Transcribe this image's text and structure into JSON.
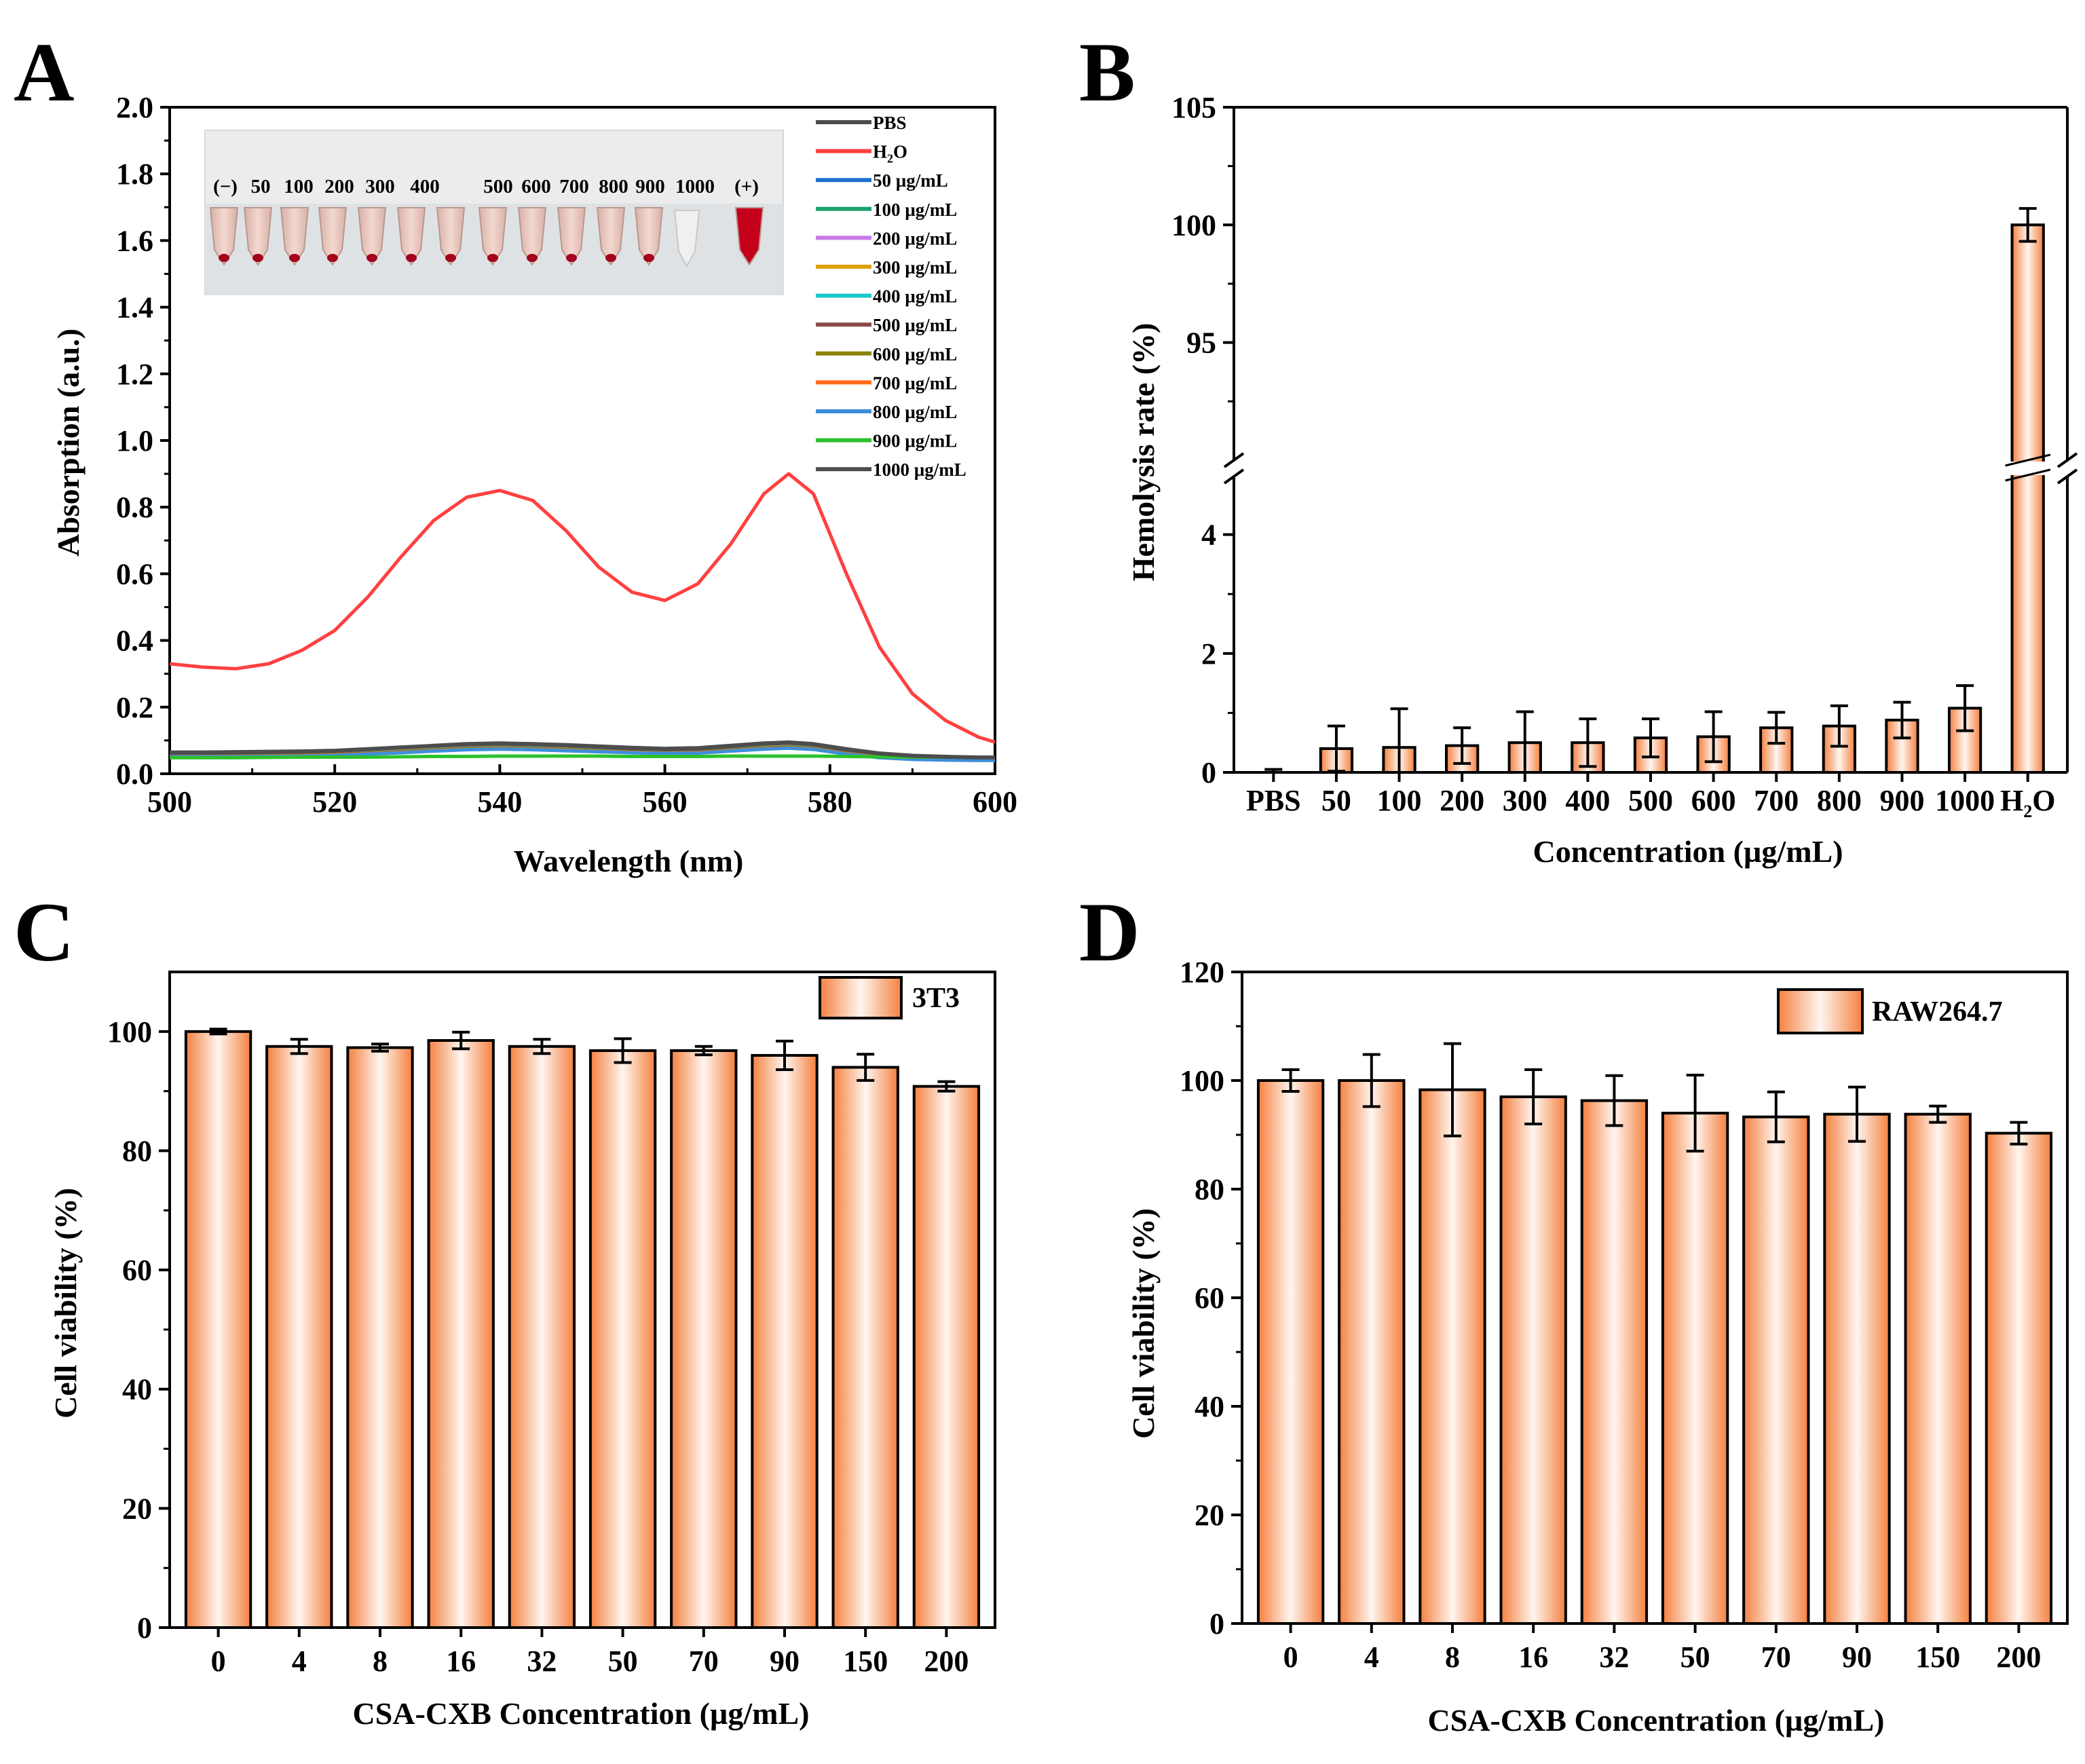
{
  "figure": {
    "panels": [
      {
        "id": "A",
        "letter": "A"
      },
      {
        "id": "B",
        "letter": "B"
      },
      {
        "id": "C",
        "letter": "C"
      },
      {
        "id": "D",
        "letter": "D"
      }
    ]
  },
  "colors": {
    "bar_edge": "#000000",
    "bar_orange": "#f4803f",
    "bar_light": "#fde8dc",
    "h2o_red": "#ff4040",
    "pbs_gray": "#4d4d4d"
  },
  "inset": {
    "description_labels": [
      "(−)",
      "50",
      "100",
      "200",
      "300",
      "400",
      "500",
      "600",
      "700",
      "800",
      "900",
      "1000",
      "(+)"
    ]
  },
  "chart_data": [
    {
      "panel": "A",
      "type": "line",
      "xlabel": "Wavelength (nm)",
      "ylabel": "Absorption (a.u.)",
      "xlim": [
        500,
        600
      ],
      "ylim": [
        0,
        2.0
      ],
      "xticks": [
        "500",
        "520",
        "540",
        "560",
        "580",
        "600"
      ],
      "yticks": [
        "0.0",
        "0.2",
        "0.4",
        "0.6",
        "0.8",
        "1.0",
        "1.2",
        "1.4",
        "1.6",
        "1.8",
        "2.0"
      ],
      "x": [
        500,
        504,
        508,
        512,
        516,
        520,
        524,
        528,
        532,
        536,
        540,
        544,
        548,
        552,
        556,
        560,
        564,
        568,
        572,
        575,
        578,
        582,
        586,
        590,
        594,
        598,
        600
      ],
      "series": [
        {
          "name": "PBS",
          "label_main": "PBS",
          "label_sub": "",
          "color": "#4d4d4d",
          "values": [
            0.065,
            0.065,
            0.066,
            0.067,
            0.068,
            0.07,
            0.075,
            0.08,
            0.085,
            0.09,
            0.092,
            0.09,
            0.087,
            0.083,
            0.079,
            0.076,
            0.078,
            0.085,
            0.092,
            0.095,
            0.09,
            0.075,
            0.062,
            0.055,
            0.052,
            0.05,
            0.05
          ]
        },
        {
          "name": "H2O",
          "label_main": "H",
          "label_sub": "2",
          "label_tail": "O",
          "color": "#ff4040",
          "values": [
            0.33,
            0.32,
            0.315,
            0.33,
            0.37,
            0.43,
            0.53,
            0.65,
            0.76,
            0.83,
            0.85,
            0.82,
            0.73,
            0.62,
            0.545,
            0.52,
            0.57,
            0.69,
            0.84,
            0.9,
            0.84,
            0.6,
            0.38,
            0.24,
            0.16,
            0.11,
            0.095
          ]
        },
        {
          "name": "50 µg/mL",
          "label_main": "50 µg/mL",
          "color": "#1f6fd1",
          "values": [
            0.06,
            0.06,
            0.06,
            0.061,
            0.062,
            0.064,
            0.068,
            0.072,
            0.077,
            0.081,
            0.083,
            0.081,
            0.078,
            0.075,
            0.072,
            0.07,
            0.071,
            0.077,
            0.083,
            0.086,
            0.082,
            0.068,
            0.057,
            0.051,
            0.049,
            0.048,
            0.048
          ]
        },
        {
          "name": "100 µg/mL",
          "label_main": "100 µg/mL",
          "color": "#1aa36b",
          "values": [
            0.058,
            0.058,
            0.058,
            0.059,
            0.06,
            0.062,
            0.066,
            0.07,
            0.075,
            0.079,
            0.081,
            0.079,
            0.076,
            0.073,
            0.07,
            0.068,
            0.069,
            0.075,
            0.081,
            0.084,
            0.08,
            0.066,
            0.055,
            0.05,
            0.048,
            0.047,
            0.047
          ]
        },
        {
          "name": "200 µg/mL",
          "label_main": "200 µg/mL",
          "color": "#c77ae6",
          "values": [
            0.057,
            0.057,
            0.057,
            0.058,
            0.059,
            0.061,
            0.065,
            0.069,
            0.074,
            0.078,
            0.08,
            0.078,
            0.075,
            0.072,
            0.069,
            0.067,
            0.068,
            0.074,
            0.08,
            0.083,
            0.079,
            0.065,
            0.054,
            0.049,
            0.047,
            0.046,
            0.046
          ]
        },
        {
          "name": "300 µg/mL",
          "label_main": "300 µg/mL",
          "color": "#e0a000",
          "values": [
            0.056,
            0.056,
            0.056,
            0.057,
            0.058,
            0.06,
            0.064,
            0.068,
            0.073,
            0.077,
            0.079,
            0.077,
            0.074,
            0.071,
            0.068,
            0.066,
            0.067,
            0.073,
            0.079,
            0.082,
            0.078,
            0.064,
            0.053,
            0.048,
            0.046,
            0.045,
            0.045
          ]
        },
        {
          "name": "400 µg/mL",
          "label_main": "400 µg/mL",
          "color": "#19c8c8",
          "values": [
            0.055,
            0.055,
            0.055,
            0.056,
            0.057,
            0.059,
            0.063,
            0.067,
            0.072,
            0.076,
            0.078,
            0.076,
            0.073,
            0.07,
            0.067,
            0.065,
            0.066,
            0.072,
            0.078,
            0.081,
            0.077,
            0.063,
            0.052,
            0.047,
            0.045,
            0.044,
            0.044
          ]
        },
        {
          "name": "500 µg/mL",
          "label_main": "500 µg/mL",
          "color": "#8b4a4a",
          "values": [
            0.054,
            0.054,
            0.054,
            0.055,
            0.056,
            0.058,
            0.062,
            0.066,
            0.071,
            0.075,
            0.077,
            0.075,
            0.072,
            0.069,
            0.066,
            0.064,
            0.065,
            0.071,
            0.077,
            0.08,
            0.076,
            0.062,
            0.051,
            0.046,
            0.044,
            0.043,
            0.043
          ]
        },
        {
          "name": "600 µg/mL",
          "label_main": "600 µg/mL",
          "color": "#8c8200",
          "values": [
            0.053,
            0.053,
            0.053,
            0.054,
            0.055,
            0.057,
            0.061,
            0.065,
            0.07,
            0.074,
            0.076,
            0.074,
            0.071,
            0.068,
            0.065,
            0.063,
            0.064,
            0.07,
            0.076,
            0.079,
            0.075,
            0.061,
            0.05,
            0.045,
            0.043,
            0.042,
            0.042
          ]
        },
        {
          "name": "700 µg/mL",
          "label_main": "700 µg/mL",
          "color": "#ff6a1a",
          "values": [
            0.052,
            0.052,
            0.052,
            0.053,
            0.054,
            0.056,
            0.06,
            0.064,
            0.069,
            0.073,
            0.075,
            0.073,
            0.07,
            0.067,
            0.064,
            0.062,
            0.063,
            0.069,
            0.075,
            0.078,
            0.074,
            0.06,
            0.049,
            0.044,
            0.042,
            0.041,
            0.041
          ]
        },
        {
          "name": "800 µg/mL",
          "label_main": "800 µg/mL",
          "color": "#3d8fd9",
          "values": [
            0.051,
            0.051,
            0.051,
            0.052,
            0.053,
            0.055,
            0.059,
            0.063,
            0.068,
            0.072,
            0.074,
            0.072,
            0.069,
            0.066,
            0.063,
            0.061,
            0.062,
            0.068,
            0.074,
            0.077,
            0.073,
            0.059,
            0.048,
            0.043,
            0.041,
            0.04,
            0.04
          ]
        },
        {
          "name": "900 µg/mL",
          "label_main": "900 µg/mL",
          "color": "#2cc22c",
          "values": [
            0.048,
            0.048,
            0.048,
            0.049,
            0.05,
            0.05,
            0.05,
            0.051,
            0.052,
            0.052,
            0.053,
            0.053,
            0.053,
            0.053,
            0.052,
            0.052,
            0.052,
            0.053,
            0.053,
            0.053,
            0.053,
            0.052,
            0.051,
            0.05,
            0.05,
            0.05,
            0.05
          ]
        },
        {
          "name": "1000 µg/mL",
          "label_main": "1000 µg/mL",
          "color": "#4d4d4d",
          "values": [
            0.062,
            0.062,
            0.063,
            0.064,
            0.066,
            0.068,
            0.073,
            0.078,
            0.083,
            0.087,
            0.089,
            0.087,
            0.084,
            0.08,
            0.076,
            0.073,
            0.075,
            0.082,
            0.089,
            0.092,
            0.087,
            0.072,
            0.06,
            0.053,
            0.05,
            0.048,
            0.048
          ]
        }
      ]
    },
    {
      "panel": "B",
      "type": "bar",
      "xlabel": "Concentration (µg/mL)",
      "ylabel": "Hemolysis rate (%)",
      "axis_break": {
        "lower": [
          0,
          5
        ],
        "upper": [
          90,
          105
        ]
      },
      "yticks_lower": [
        "0",
        "2",
        "4"
      ],
      "yticks_upper": [
        "95",
        "100",
        "105"
      ],
      "categories": [
        "PBS",
        "50",
        "100",
        "200",
        "300",
        "400",
        "500",
        "600",
        "700",
        "800",
        "900",
        "1000",
        "H2O"
      ],
      "h2o_label": {
        "main": "H",
        "sub": "2",
        "tail": "O"
      },
      "values": [
        0.0,
        0.4,
        0.42,
        0.45,
        0.5,
        0.5,
        0.58,
        0.6,
        0.75,
        0.78,
        0.88,
        1.08,
        100
      ],
      "errors": [
        0.05,
        0.38,
        0.65,
        0.3,
        0.52,
        0.4,
        0.32,
        0.42,
        0.26,
        0.34,
        0.3,
        0.38,
        0.7
      ]
    },
    {
      "panel": "C",
      "type": "bar",
      "xlabel": "CSA-CXB Concentration (µg/mL)",
      "ylabel": "Cell viability (%)",
      "legend": "3T3",
      "ylim": [
        0,
        110
      ],
      "yticks": [
        "0",
        "20",
        "40",
        "60",
        "80",
        "100"
      ],
      "categories": [
        "0",
        "4",
        "8",
        "16",
        "32",
        "50",
        "70",
        "90",
        "150",
        "200"
      ],
      "values": [
        100,
        97.5,
        97.3,
        98.5,
        97.5,
        96.8,
        96.8,
        96.0,
        94.0,
        90.8
      ],
      "errors": [
        0.4,
        1.2,
        0.6,
        1.4,
        1.2,
        2.0,
        0.7,
        2.4,
        2.2,
        0.8
      ]
    },
    {
      "panel": "D",
      "type": "bar",
      "xlabel": "CSA-CXB Concentration (µg/mL)",
      "ylabel": "Cell viability (%)",
      "legend": "RAW264.7",
      "ylim": [
        0,
        120
      ],
      "yticks": [
        "0",
        "20",
        "40",
        "60",
        "80",
        "100",
        "120"
      ],
      "categories": [
        "0",
        "4",
        "8",
        "16",
        "32",
        "50",
        "70",
        "90",
        "150",
        "200"
      ],
      "values": [
        100,
        100,
        98.3,
        97.0,
        96.3,
        94.0,
        93.3,
        93.8,
        93.8,
        90.3
      ],
      "errors": [
        2.0,
        4.8,
        8.5,
        5.0,
        4.6,
        7.0,
        4.6,
        5.0,
        1.5,
        2.0
      ]
    }
  ]
}
